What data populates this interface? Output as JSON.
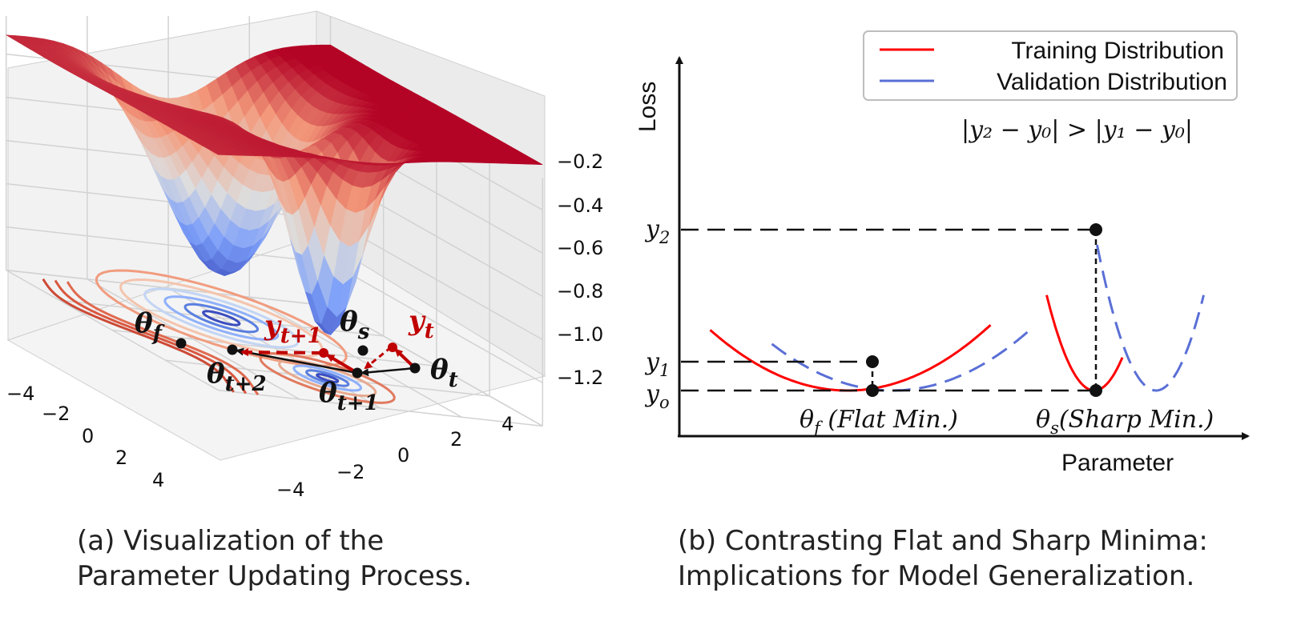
{
  "captions": {
    "a_line1": "(a) Visualization of the",
    "a_line2": "Parameter Updating Process.",
    "b_line1": "(b) Contrasting Flat and Sharp Minima:",
    "b_line2": "Implications for Model Generalization."
  },
  "colors": {
    "training": "#ff0000",
    "validation": "#5a6fd6",
    "step_red": "#c00000",
    "surface_high": "#b2182b",
    "surface_low": "#5a7fe0"
  },
  "chart_data": [
    {
      "type": "surface3d",
      "xlim": [
        -4,
        4
      ],
      "ylim": [
        -4,
        4
      ],
      "zlim": [
        -1.2,
        -0.2
      ],
      "x_ticks": [
        "−4",
        "−2",
        "0",
        "2",
        "4"
      ],
      "y_ticks": [
        "−4",
        "−2",
        "0",
        "2",
        "4"
      ],
      "z_ticks": [
        "−0.2",
        "−0.4",
        "−0.6",
        "−0.8",
        "−1.0",
        "−1.2"
      ],
      "colormap": "coolwarm",
      "minima": [
        {
          "name": "flat",
          "label": "θ",
          "sub": "f",
          "x": -2.0,
          "y": 0.0,
          "z": -1.2
        },
        {
          "name": "sharp",
          "label": "θ",
          "sub": "s",
          "x": 2.0,
          "y": 0.0,
          "z": -1.2
        }
      ],
      "trajectory": [
        {
          "label": "θ",
          "sub": "t"
        },
        {
          "label": "θ",
          "sub": "t+1"
        },
        {
          "label": "θ",
          "sub": "t+2"
        }
      ],
      "red_labels": [
        {
          "label": "y",
          "sub": "t"
        },
        {
          "label": "y",
          "sub": "t+1"
        }
      ]
    },
    {
      "type": "line",
      "xlabel": "Parameter",
      "ylabel": "Loss",
      "legend_position": "top-right",
      "series": [
        {
          "name": "Training Distribution",
          "style": "solid",
          "color": "#ff0000",
          "curves": [
            {
              "center": 0.3,
              "depth": 0.0,
              "k": 4.2,
              "x_range": [
                0.055,
                0.555
              ]
            },
            {
              "center": 0.74,
              "depth": 0.0,
              "k": 55.0,
              "x_range": [
                0.655,
                0.79
              ]
            }
          ]
        },
        {
          "name": "Validation Distribution",
          "style": "dashed",
          "color": "#5a6fd6",
          "curves": [
            {
              "center": 0.38,
              "depth": 0.0,
              "k": 4.2,
              "x_range": [
                0.165,
                0.625
              ]
            },
            {
              "center": 0.85,
              "depth": 0.0,
              "k": 55.0,
              "x_range": [
                0.745,
                0.935
              ]
            }
          ]
        }
      ],
      "y_ticks": [
        {
          "label": "y",
          "sub": "2"
        },
        {
          "label": "y",
          "sub": "1"
        },
        {
          "label": "y",
          "sub": "o"
        }
      ],
      "annotations": {
        "inequality": "|y₂ − y₀| > |y₁ − y₀|",
        "flat_label": "θ",
        "flat_sub": "f",
        "flat_text": " (Flat Min.)",
        "sharp_label": "θ",
        "sharp_sub": "s",
        "sharp_text": "(Sharp Min.)"
      }
    }
  ]
}
